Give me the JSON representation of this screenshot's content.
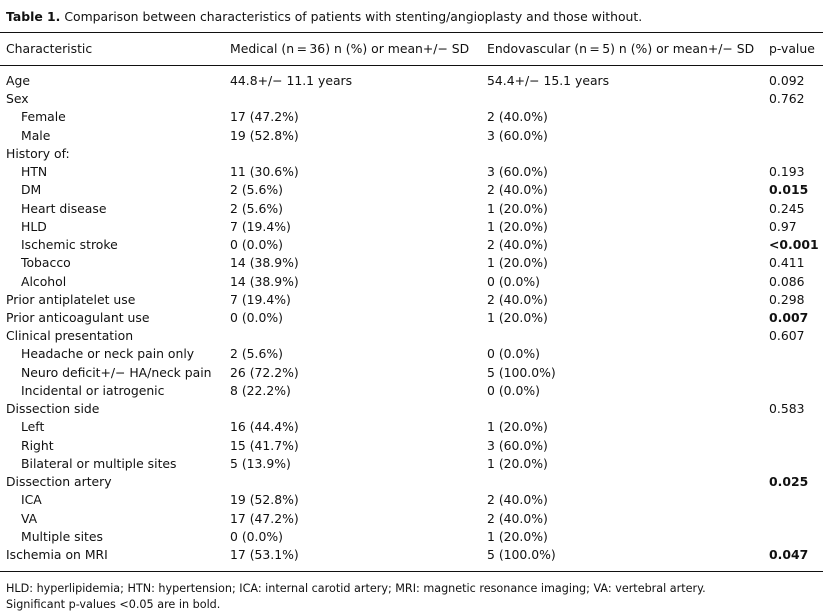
{
  "caption": {
    "label": "Table 1.",
    "text": "Comparison between characteristics of patients with stenting/angioplasty and those without."
  },
  "headers": [
    "Characteristic",
    "Medical (n = 36) n (%) or mean+/− SD",
    "Endovascular (n = 5) n (%) or mean+/− SD",
    "p-value"
  ],
  "rows": [
    {
      "label": "Age",
      "indent": false,
      "medical": "44.8+/− 11.1 years",
      "endo": "54.4+/− 15.1 years",
      "p": "0.092",
      "bold": false
    },
    {
      "label": "Sex",
      "indent": false,
      "medical": "",
      "endo": "",
      "p": "0.762",
      "bold": false
    },
    {
      "label": "Female",
      "indent": true,
      "medical": "17 (47.2%)",
      "endo": "2 (40.0%)",
      "p": "",
      "bold": false
    },
    {
      "label": "Male",
      "indent": true,
      "medical": "19 (52.8%)",
      "endo": "3 (60.0%)",
      "p": "",
      "bold": false
    },
    {
      "label": "History of:",
      "indent": false,
      "medical": "",
      "endo": "",
      "p": "",
      "bold": false
    },
    {
      "label": "HTN",
      "indent": true,
      "medical": "11 (30.6%)",
      "endo": "3 (60.0%)",
      "p": "0.193",
      "bold": false
    },
    {
      "label": "DM",
      "indent": true,
      "medical": "2 (5.6%)",
      "endo": "2 (40.0%)",
      "p": "0.015",
      "bold": true
    },
    {
      "label": "Heart disease",
      "indent": true,
      "medical": "2 (5.6%)",
      "endo": "1 (20.0%)",
      "p": "0.245",
      "bold": false
    },
    {
      "label": "HLD",
      "indent": true,
      "medical": "7 (19.4%)",
      "endo": "1 (20.0%)",
      "p": "0.97",
      "bold": false
    },
    {
      "label": "Ischemic stroke",
      "indent": true,
      "medical": "0 (0.0%)",
      "endo": "2 (40.0%)",
      "p": "<0.001",
      "bold": true
    },
    {
      "label": "Tobacco",
      "indent": true,
      "medical": "14 (38.9%)",
      "endo": "1 (20.0%)",
      "p": "0.411",
      "bold": false
    },
    {
      "label": "Alcohol",
      "indent": true,
      "medical": "14 (38.9%)",
      "endo": "0 (0.0%)",
      "p": "0.086",
      "bold": false
    },
    {
      "label": "Prior antiplatelet use",
      "indent": false,
      "medical": "7 (19.4%)",
      "endo": "2 (40.0%)",
      "p": "0.298",
      "bold": false
    },
    {
      "label": "Prior anticoagulant use",
      "indent": false,
      "medical": "0 (0.0%)",
      "endo": "1 (20.0%)",
      "p": "0.007",
      "bold": true
    },
    {
      "label": "Clinical presentation",
      "indent": false,
      "medical": "",
      "endo": "",
      "p": "0.607",
      "bold": false
    },
    {
      "label": "Headache or neck pain only",
      "indent": true,
      "medical": "2 (5.6%)",
      "endo": "0 (0.0%)",
      "p": "",
      "bold": false
    },
    {
      "label": "Neuro deficit+/− HA/neck pain",
      "indent": true,
      "medical": "26 (72.2%)",
      "endo": "5 (100.0%)",
      "p": "",
      "bold": false
    },
    {
      "label": "Incidental or iatrogenic",
      "indent": true,
      "medical": "8 (22.2%)",
      "endo": "0 (0.0%)",
      "p": "",
      "bold": false
    },
    {
      "label": "Dissection side",
      "indent": false,
      "medical": "",
      "endo": "",
      "p": "0.583",
      "bold": false
    },
    {
      "label": "Left",
      "indent": true,
      "medical": "16 (44.4%)",
      "endo": "1 (20.0%)",
      "p": "",
      "bold": false
    },
    {
      "label": "Right",
      "indent": true,
      "medical": "15 (41.7%)",
      "endo": "3 (60.0%)",
      "p": "",
      "bold": false
    },
    {
      "label": "Bilateral or multiple sites",
      "indent": true,
      "medical": "5 (13.9%)",
      "endo": "1 (20.0%)",
      "p": "",
      "bold": false
    },
    {
      "label": "Dissection artery",
      "indent": false,
      "medical": "",
      "endo": "",
      "p": "0.025",
      "bold": true
    },
    {
      "label": "ICA",
      "indent": true,
      "medical": "19 (52.8%)",
      "endo": "2 (40.0%)",
      "p": "",
      "bold": false
    },
    {
      "label": "VA",
      "indent": true,
      "medical": "17 (47.2%)",
      "endo": "2 (40.0%)",
      "p": "",
      "bold": false
    },
    {
      "label": "Multiple sites",
      "indent": true,
      "medical": "0 (0.0%)",
      "endo": "1 (20.0%)",
      "p": "",
      "bold": false
    },
    {
      "label": "Ischemia on MRI",
      "indent": false,
      "medical": "17 (53.1%)",
      "endo": "5 (100.0%)",
      "p": "0.047",
      "bold": true
    }
  ],
  "footnotes": [
    "HLD: hyperlipidemia; HTN: hypertension; ICA: internal carotid artery; MRI: magnetic resonance imaging; VA: vertebral artery.",
    "Significant p-values <0.05 are in bold."
  ]
}
